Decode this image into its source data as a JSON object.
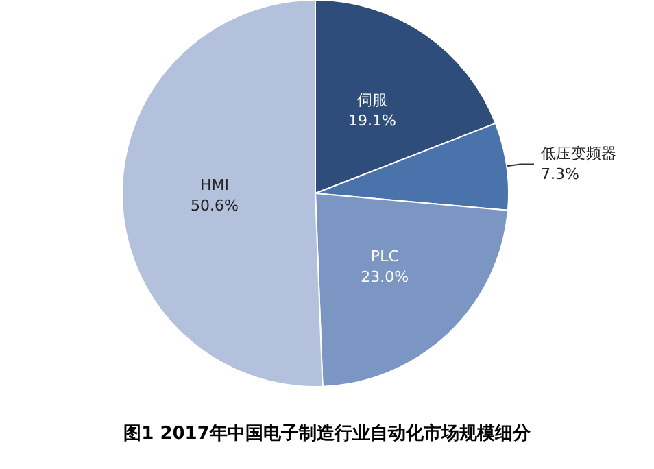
{
  "chart_data": {
    "type": "pie",
    "title": "图1 2017年中国电子制造行业自动化市场规模细分",
    "categories": [
      "伺服",
      "低压变频器",
      "PLC",
      "HMI"
    ],
    "values": [
      19.1,
      7.3,
      23.0,
      50.6
    ],
    "value_labels": [
      "19.1%",
      "7.3%",
      "23.0%",
      "50.6%"
    ],
    "colors": [
      "#2f4d7a",
      "#4a72ab",
      "#7b96c2",
      "#b4c1dc"
    ],
    "legend": false
  }
}
